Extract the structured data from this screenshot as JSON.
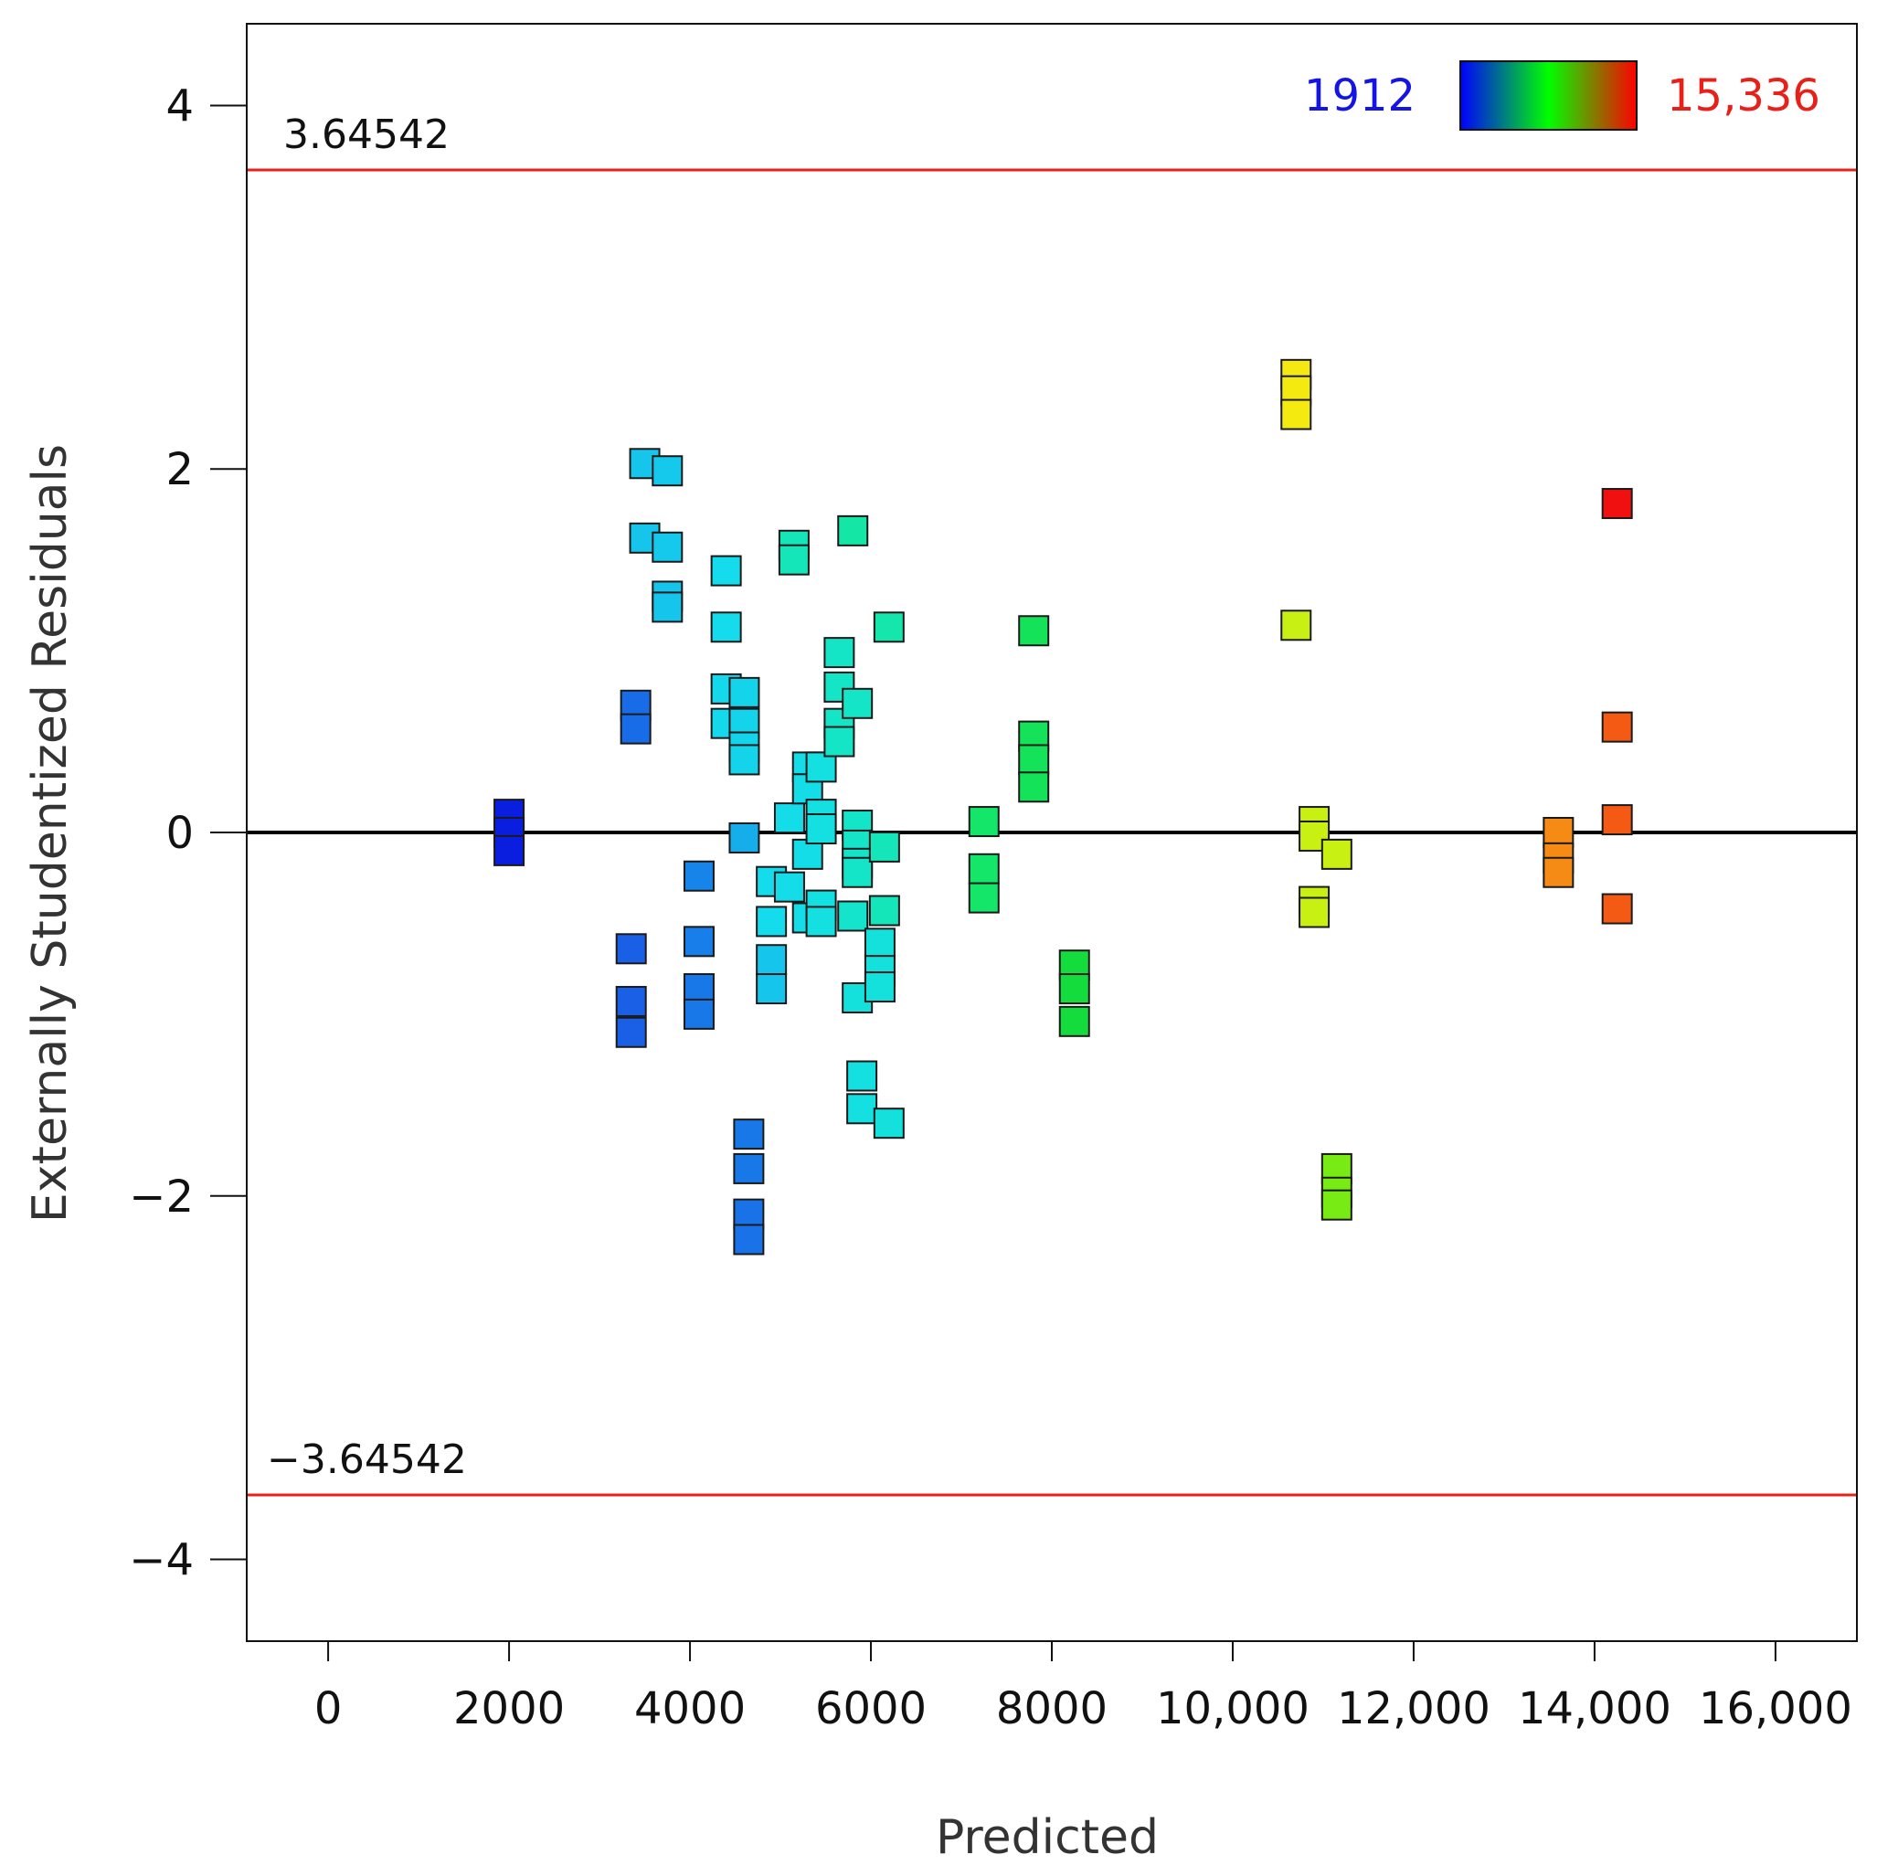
{
  "chart_data": {
    "type": "scatter",
    "xlabel": "Predicted",
    "ylabel": "Externally Studentized Residuals",
    "xlim": [
      -900,
      16900
    ],
    "ylim": [
      -4.45,
      4.45
    ],
    "x_ticks": [
      0,
      2000,
      4000,
      6000,
      8000,
      10000,
      12000,
      14000,
      16000
    ],
    "x_tick_labels": [
      "0",
      "2000",
      "4000",
      "6000",
      "8000",
      "10,000",
      "12,000",
      "14,000",
      "16,000"
    ],
    "y_ticks": [
      4,
      2,
      0,
      -2,
      -4
    ],
    "y_tick_labels": [
      "4",
      "2",
      "0",
      "−2",
      "−4"
    ],
    "grid": false,
    "zero_line": 0,
    "limit_lines": [
      {
        "value": 3.64542,
        "label": "3.64542",
        "color": "#e8201a"
      },
      {
        "value": -3.64542,
        "label": "−3.64542",
        "color": "#e8201a"
      }
    ],
    "legend": {
      "placement": "top-right",
      "min_label": "1912",
      "max_label": "15,336",
      "min_value": 1912,
      "max_value": 15336,
      "min_color": "#1414e6",
      "max_color": "#e8201a",
      "gradient_colors": [
        "#0000ff",
        "#00ff00",
        "#ff0000"
      ]
    },
    "point_colormap": [
      {
        "value": 1912,
        "color": "#0a1ee0"
      },
      {
        "value": 3400,
        "color": "#1a60e6"
      },
      {
        "value": 4200,
        "color": "#1690ea"
      },
      {
        "value": 5200,
        "color": "#14dcec"
      },
      {
        "value": 6000,
        "color": "#14e6c0"
      },
      {
        "value": 7300,
        "color": "#14e66a"
      },
      {
        "value": 8300,
        "color": "#14dc3c"
      },
      {
        "value": 10800,
        "color": "#f5ea10"
      },
      {
        "value": 11000,
        "color": "#c8f012"
      },
      {
        "value": 11200,
        "color": "#78ea14"
      },
      {
        "value": 13600,
        "color": "#f58a14"
      },
      {
        "value": 14250,
        "color": "#f55a14"
      },
      {
        "value": 14300,
        "color": "#f01010"
      }
    ],
    "points": [
      {
        "x": 2000,
        "y": 0.1,
        "color_value": 1912
      },
      {
        "x": 2000,
        "y": 0.0,
        "color_value": 1912
      },
      {
        "x": 2000,
        "y": -0.1,
        "color_value": 1912
      },
      {
        "x": 3350,
        "y": -0.64,
        "color_value": 3400
      },
      {
        "x": 3350,
        "y": -0.93,
        "color_value": 3400
      },
      {
        "x": 3350,
        "y": -1.1,
        "color_value": 3400
      },
      {
        "x": 3400,
        "y": 0.7,
        "color_value": 3600
      },
      {
        "x": 3400,
        "y": 0.57,
        "color_value": 3600
      },
      {
        "x": 3500,
        "y": 2.03,
        "color_value": 4900
      },
      {
        "x": 3500,
        "y": 1.62,
        "color_value": 4900
      },
      {
        "x": 3750,
        "y": 1.99,
        "color_value": 4950
      },
      {
        "x": 3750,
        "y": 1.57,
        "color_value": 4950
      },
      {
        "x": 3750,
        "y": 1.3,
        "color_value": 4900
      },
      {
        "x": 3750,
        "y": 1.24,
        "color_value": 4900
      },
      {
        "x": 4100,
        "y": -0.24,
        "color_value": 4000
      },
      {
        "x": 4100,
        "y": -0.6,
        "color_value": 3900
      },
      {
        "x": 4100,
        "y": -0.86,
        "color_value": 3800
      },
      {
        "x": 4100,
        "y": -1.0,
        "color_value": 3800
      },
      {
        "x": 4400,
        "y": 1.44,
        "color_value": 5200
      },
      {
        "x": 4400,
        "y": 1.13,
        "color_value": 5200
      },
      {
        "x": 4400,
        "y": 0.79,
        "color_value": 5150
      },
      {
        "x": 4400,
        "y": 0.6,
        "color_value": 5150
      },
      {
        "x": 4600,
        "y": 0.77,
        "color_value": 5100
      },
      {
        "x": 4600,
        "y": 0.6,
        "color_value": 5100
      },
      {
        "x": 4600,
        "y": 0.47,
        "color_value": 5100
      },
      {
        "x": 4600,
        "y": 0.4,
        "color_value": 5100
      },
      {
        "x": 4600,
        "y": -0.03,
        "color_value": 4600
      },
      {
        "x": 4650,
        "y": -1.66,
        "color_value": 3800
      },
      {
        "x": 4650,
        "y": -1.85,
        "color_value": 3800
      },
      {
        "x": 4650,
        "y": -2.1,
        "color_value": 3700
      },
      {
        "x": 4650,
        "y": -2.24,
        "color_value": 3700
      },
      {
        "x": 4900,
        "y": -0.27,
        "color_value": 5200
      },
      {
        "x": 4900,
        "y": -0.49,
        "color_value": 5200
      },
      {
        "x": 4900,
        "y": -0.7,
        "color_value": 4900
      },
      {
        "x": 4900,
        "y": -0.86,
        "color_value": 4900
      },
      {
        "x": 5100,
        "y": 0.08,
        "color_value": 5250
      },
      {
        "x": 5100,
        "y": -0.3,
        "color_value": 5250
      },
      {
        "x": 5150,
        "y": 1.58,
        "color_value": 6100
      },
      {
        "x": 5150,
        "y": 1.5,
        "color_value": 6100
      },
      {
        "x": 5300,
        "y": 0.36,
        "color_value": 5300
      },
      {
        "x": 5300,
        "y": 0.24,
        "color_value": 5300
      },
      {
        "x": 5300,
        "y": -0.12,
        "color_value": 5300
      },
      {
        "x": 5300,
        "y": -0.47,
        "color_value": 5300
      },
      {
        "x": 5450,
        "y": 0.36,
        "color_value": 5400
      },
      {
        "x": 5450,
        "y": 0.1,
        "color_value": 5400
      },
      {
        "x": 5450,
        "y": 0.02,
        "color_value": 5400
      },
      {
        "x": 5450,
        "y": -0.4,
        "color_value": 5400
      },
      {
        "x": 5450,
        "y": -0.49,
        "color_value": 5400
      },
      {
        "x": 5650,
        "y": 0.99,
        "color_value": 5900
      },
      {
        "x": 5650,
        "y": 0.8,
        "color_value": 5900
      },
      {
        "x": 5650,
        "y": 0.6,
        "color_value": 5900
      },
      {
        "x": 5650,
        "y": 0.5,
        "color_value": 5900
      },
      {
        "x": 5800,
        "y": 1.66,
        "color_value": 6400
      },
      {
        "x": 5850,
        "y": 0.71,
        "color_value": 5900
      },
      {
        "x": 5850,
        "y": 0.04,
        "color_value": 5850
      },
      {
        "x": 5850,
        "y": -0.07,
        "color_value": 5850
      },
      {
        "x": 5850,
        "y": -0.17,
        "color_value": 5850
      },
      {
        "x": 5850,
        "y": -0.22,
        "color_value": 5850
      },
      {
        "x": 5800,
        "y": -0.46,
        "color_value": 5800
      },
      {
        "x": 5850,
        "y": -0.91,
        "color_value": 5500
      },
      {
        "x": 5900,
        "y": -1.34,
        "color_value": 5400
      },
      {
        "x": 5900,
        "y": -1.52,
        "color_value": 5400
      },
      {
        "x": 6100,
        "y": -0.61,
        "color_value": 5500
      },
      {
        "x": 6100,
        "y": -0.76,
        "color_value": 5500
      },
      {
        "x": 6100,
        "y": -0.85,
        "color_value": 5500
      },
      {
        "x": 6150,
        "y": -0.08,
        "color_value": 6100
      },
      {
        "x": 6150,
        "y": -0.43,
        "color_value": 6100
      },
      {
        "x": 6200,
        "y": 1.13,
        "color_value": 6300
      },
      {
        "x": 6200,
        "y": -1.6,
        "color_value": 5500
      },
      {
        "x": 7250,
        "y": 0.06,
        "color_value": 7300
      },
      {
        "x": 7250,
        "y": -0.2,
        "color_value": 7300
      },
      {
        "x": 7250,
        "y": -0.36,
        "color_value": 7300
      },
      {
        "x": 7800,
        "y": 1.11,
        "color_value": 7700
      },
      {
        "x": 7800,
        "y": 0.53,
        "color_value": 7700
      },
      {
        "x": 7800,
        "y": 0.4,
        "color_value": 7700
      },
      {
        "x": 7800,
        "y": 0.25,
        "color_value": 7700
      },
      {
        "x": 8250,
        "y": -0.73,
        "color_value": 8300
      },
      {
        "x": 8250,
        "y": -0.86,
        "color_value": 8300
      },
      {
        "x": 8250,
        "y": -1.04,
        "color_value": 8300
      },
      {
        "x": 10700,
        "y": 2.52,
        "color_value": 10800
      },
      {
        "x": 10700,
        "y": 2.43,
        "color_value": 10800
      },
      {
        "x": 10700,
        "y": 2.3,
        "color_value": 10800
      },
      {
        "x": 10700,
        "y": 1.14,
        "color_value": 11000
      },
      {
        "x": 10900,
        "y": 0.06,
        "color_value": 11000
      },
      {
        "x": 10900,
        "y": -0.02,
        "color_value": 11000
      },
      {
        "x": 10900,
        "y": -0.38,
        "color_value": 11000
      },
      {
        "x": 10900,
        "y": -0.44,
        "color_value": 11000
      },
      {
        "x": 11150,
        "y": -0.12,
        "color_value": 11000
      },
      {
        "x": 11150,
        "y": -1.85,
        "color_value": 11200
      },
      {
        "x": 11150,
        "y": -1.98,
        "color_value": 11200
      },
      {
        "x": 11150,
        "y": -2.05,
        "color_value": 11200
      },
      {
        "x": 13600,
        "y": 0.0,
        "color_value": 13600
      },
      {
        "x": 13600,
        "y": -0.14,
        "color_value": 13600
      },
      {
        "x": 13600,
        "y": -0.22,
        "color_value": 13600
      },
      {
        "x": 14250,
        "y": 1.81,
        "color_value": 14300
      },
      {
        "x": 14250,
        "y": 0.58,
        "color_value": 14250
      },
      {
        "x": 14250,
        "y": 0.07,
        "color_value": 14250
      },
      {
        "x": 14250,
        "y": -0.42,
        "color_value": 14250
      }
    ]
  }
}
